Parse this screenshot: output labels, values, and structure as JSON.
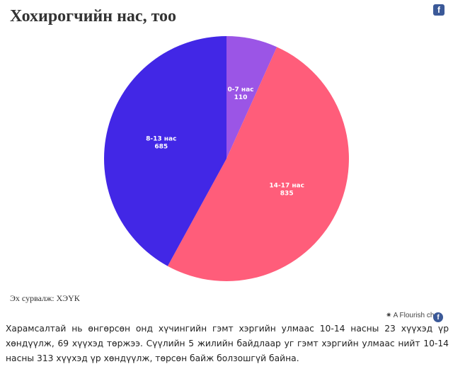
{
  "chart_data": {
    "type": "pie",
    "title": "Хохирогчийн нас, тоо",
    "slices": [
      {
        "label": "0-7 нас",
        "value": 110,
        "color": "#9b55e6"
      },
      {
        "label": "14-17 нас",
        "value": 835,
        "color": "#ff5d7a"
      },
      {
        "label": "8-13 нас",
        "value": 685,
        "color": "#4227e6"
      }
    ],
    "start_angle_deg": 0,
    "direction": "clockwise"
  },
  "source": "Эх сурвалж: ХЭҮК",
  "credit": "A Flourish ch",
  "facebook_icon": "f",
  "article_text": "Харамсалтай нь өнгөрсөн онд хүчингийн гэмт хэргийн улмаас 10-14 насны 23 хүүхэд үр хөндүүлж, 69 хүүхэд төржээ. Сүүлийн 5 жилийн байдлаар уг гэмт хэргийн улмаас нийт 10-14 насны 313 хүүхэд үр хөндүүлж, төрсөн байж болзошгүй байна."
}
